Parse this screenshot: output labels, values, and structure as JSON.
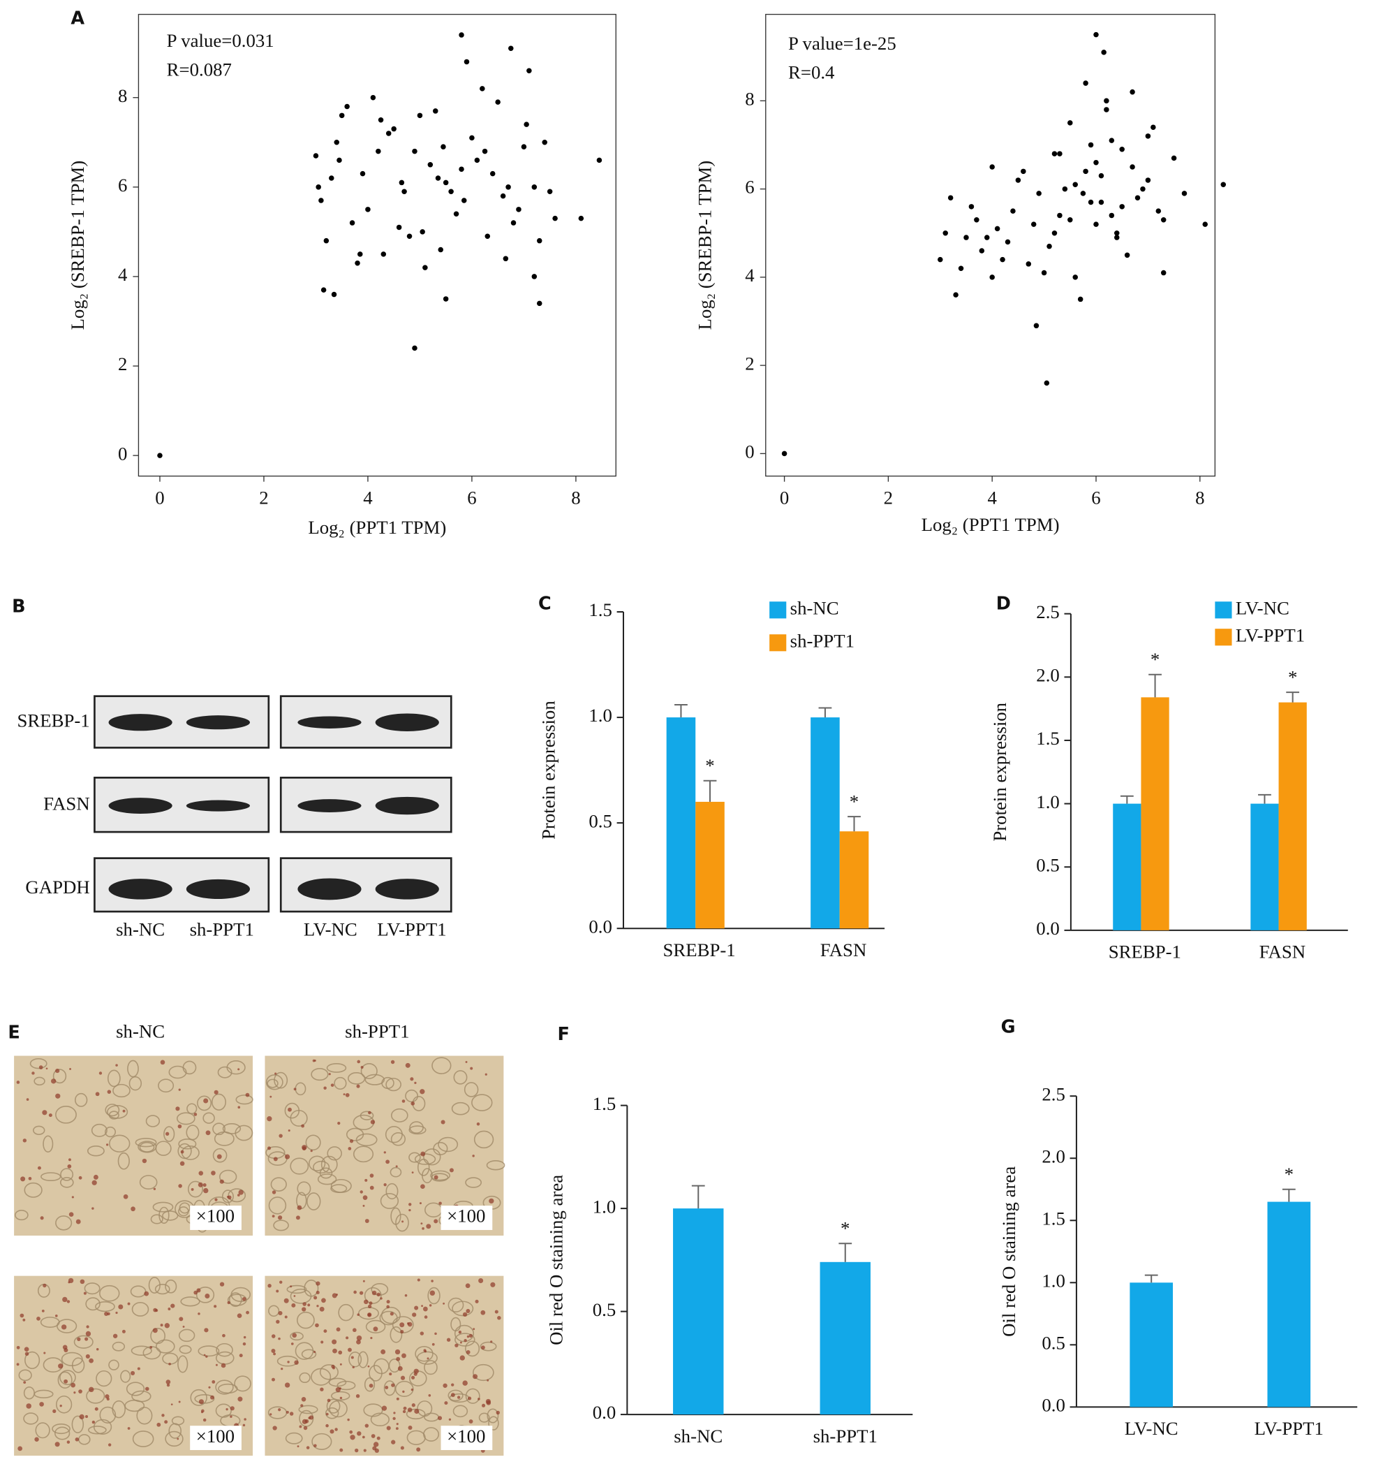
{
  "chart_data": [
    {
      "type": "scatter",
      "panel": "A",
      "annotations": [
        "P value=0.031",
        "R=0.087"
      ],
      "x_label": "Log₂ (PPT1 TPM)",
      "y_label": "Log₂ (SREBP-1 TPM)",
      "color": "#000000",
      "x": [
        0,
        4.9,
        3.15,
        3.35,
        8.45,
        8.1,
        7.3,
        7.2,
        5.8,
        6.75,
        5.5,
        3.0,
        3.2,
        3.5,
        3.7,
        3.9,
        4.1,
        4.3,
        4.5,
        4.7,
        4.9,
        5.1,
        5.3,
        5.5,
        5.7,
        5.9,
        6.1,
        6.3,
        6.5,
        6.7,
        6.9,
        7.1,
        7.4,
        7.6,
        3.1,
        3.4,
        3.8,
        4.2,
        4.6,
        5.0,
        5.4,
        5.8,
        6.2,
        6.6,
        7.0,
        7.3,
        3.3,
        3.6,
        4.0,
        4.4,
        4.8,
        5.2,
        5.6,
        6.0,
        6.4,
        6.8,
        7.2,
        3.05,
        3.45,
        3.85,
        4.25,
        4.65,
        5.05,
        5.45,
        5.85,
        6.25,
        6.65,
        7.05,
        7.5,
        5.35
      ],
      "y": [
        0,
        2.4,
        3.7,
        3.6,
        6.6,
        5.3,
        3.4,
        4.0,
        9.4,
        9.1,
        3.5,
        6.7,
        4.8,
        7.6,
        5.2,
        6.3,
        8.0,
        4.5,
        7.3,
        5.9,
        6.8,
        4.2,
        7.7,
        6.1,
        5.4,
        8.8,
        6.6,
        4.9,
        7.9,
        6.0,
        5.5,
        8.6,
        7.0,
        5.3,
        5.7,
        7.0,
        4.3,
        6.8,
        5.1,
        7.6,
        4.6,
        6.4,
        8.2,
        5.8,
        6.9,
        4.8,
        6.2,
        7.8,
        5.5,
        7.2,
        4.9,
        6.5,
        5.9,
        7.1,
        6.3,
        5.2,
        6.0,
        6.0,
        6.6,
        4.5,
        7.5,
        6.1,
        5.0,
        6.9,
        5.7,
        6.8,
        4.4,
        7.4,
        5.9,
        6.2
      ],
      "xlim": [
        -0.41,
        8.77
      ],
      "ylim": [
        -0.46,
        9.86
      ],
      "xticks": [
        0,
        2,
        4,
        6,
        8
      ],
      "yticks": [
        0,
        2,
        4,
        6,
        8
      ]
    },
    {
      "type": "scatter",
      "annotations": [
        "P value=1e-25",
        "R=0.4"
      ],
      "x_label": "Log₂ (PPT1 TPM)",
      "y_label": "Log₂ (SREBP-1 TPM)",
      "color": "#000000",
      "x": [
        0,
        5.05,
        4.85,
        6.0,
        6.15,
        8.45,
        8.1,
        3.3,
        7.3,
        3.0,
        3.1,
        3.2,
        3.4,
        3.5,
        3.7,
        3.8,
        4.0,
        4.1,
        4.3,
        4.4,
        4.6,
        4.7,
        4.9,
        5.0,
        5.2,
        5.3,
        5.5,
        5.6,
        5.8,
        5.9,
        6.1,
        6.2,
        6.4,
        6.5,
        6.7,
        6.8,
        7.0,
        7.1,
        7.3,
        7.5,
        7.7,
        3.6,
        4.2,
        4.8,
        5.4,
        5.7,
        6.0,
        6.3,
        6.6,
        6.9,
        7.2,
        5.1,
        5.5,
        5.9,
        6.2,
        6.5,
        4.5,
        3.9,
        5.8,
        6.4,
        6.1,
        5.6,
        7.0,
        4.0,
        5.2,
        6.7,
        5.3,
        6.0,
        5.75,
        6.3
      ],
      "y": [
        0,
        1.6,
        2.9,
        9.5,
        9.1,
        6.1,
        5.2,
        3.6,
        4.1,
        4.4,
        5.0,
        5.8,
        4.2,
        4.9,
        5.3,
        4.6,
        6.5,
        5.1,
        4.8,
        5.5,
        6.4,
        4.3,
        5.9,
        4.1,
        6.8,
        5.4,
        7.5,
        4.0,
        8.4,
        5.7,
        6.3,
        7.8,
        5.0,
        6.9,
        8.2,
        5.8,
        6.2,
        7.4,
        5.3,
        6.7,
        5.9,
        5.6,
        4.4,
        5.2,
        6.0,
        3.5,
        6.6,
        7.1,
        4.5,
        6.0,
        5.5,
        4.7,
        5.3,
        7.0,
        8.0,
        5.6,
        6.2,
        4.9,
        6.4,
        4.9,
        5.7,
        6.1,
        7.2,
        4.0,
        5.0,
        6.5,
        6.8,
        5.2,
        5.9,
        5.4
      ],
      "xlim": [
        -0.36,
        8.29
      ],
      "ylim": [
        -0.51,
        9.96
      ],
      "xticks": [
        0,
        2,
        4,
        6,
        8
      ],
      "yticks": [
        0,
        2,
        4,
        6,
        8
      ]
    },
    {
      "type": "bar",
      "panel": "C",
      "y_label": "Protein expression",
      "categories": [
        "SREBP-1",
        "FASN"
      ],
      "series": [
        {
          "name": "sh-NC",
          "color": "#12a8e8",
          "values": [
            1.0,
            1.0
          ],
          "errors": [
            0.06,
            0.045
          ]
        },
        {
          "name": "sh-PPT1",
          "color": "#f7990f",
          "values": [
            0.6,
            0.46
          ],
          "errors": [
            0.1,
            0.07
          ],
          "value_annotations": [
            "*",
            "*"
          ]
        }
      ],
      "ylim": [
        0,
        1.5
      ],
      "yticks": [
        {
          "value": 0,
          "label": "0.0"
        },
        0.5,
        {
          "value": 1,
          "label": "1.0"
        },
        1.5
      ],
      "legend": "top-right"
    },
    {
      "type": "bar",
      "panel": "D",
      "y_label": "Protein expression",
      "categories": [
        "SREBP-1",
        "FASN"
      ],
      "series": [
        {
          "name": "LV-NC",
          "color": "#12a8e8",
          "values": [
            1.0,
            1.0
          ],
          "errors": [
            0.06,
            0.07
          ]
        },
        {
          "name": "LV-PPT1",
          "color": "#f7990f",
          "values": [
            1.84,
            1.8
          ],
          "errors": [
            0.18,
            0.08
          ],
          "value_annotations": [
            "*",
            "*"
          ]
        }
      ],
      "ylim": [
        0,
        2.5
      ],
      "yticks": [
        {
          "value": 0,
          "label": "0.0"
        },
        0.5,
        {
          "value": 1,
          "label": "1.0"
        },
        1.5,
        {
          "value": 2,
          "label": "2.0"
        },
        2.5
      ],
      "legend": "top-right"
    },
    {
      "type": "bar",
      "panel": "F",
      "y_label": "Oil red O staining area",
      "categories": [
        "sh-NC",
        "sh-PPT1"
      ],
      "series": [
        {
          "color": "#12a8e8",
          "values": [
            1.0,
            0.74
          ],
          "errors": [
            0.11,
            0.09
          ],
          "value_annotations": [
            null,
            "*"
          ]
        }
      ],
      "ylim": [
        0,
        1.5
      ],
      "yticks": [
        {
          "value": 0,
          "label": "0.0"
        },
        0.5,
        {
          "value": 1,
          "label": "1.0"
        },
        1.5
      ]
    },
    {
      "type": "bar",
      "panel": "G",
      "y_label": "Oil red O staining area",
      "categories": [
        "LV-NC",
        "LV-PPT1"
      ],
      "series": [
        {
          "color": "#12a8e8",
          "values": [
            1.0,
            1.65
          ],
          "errors": [
            0.06,
            0.1
          ],
          "value_annotations": [
            null,
            "*"
          ]
        }
      ],
      "ylim": [
        0,
        2.5
      ],
      "yticks": [
        {
          "value": 0,
          "label": "0.0"
        },
        0.5,
        {
          "value": 1,
          "label": "1.0"
        },
        1.5,
        {
          "value": 2,
          "label": "2.0"
        },
        2.5
      ]
    }
  ],
  "blot": {
    "panel": "B",
    "proteins": [
      "SREBP-1",
      "FASN",
      "GAPDH"
    ],
    "lanes": [
      "sh-NC",
      "sh-PPT1",
      "LV-NC",
      "LV-PPT1"
    ]
  },
  "micrographs": {
    "panel": "E",
    "columns": [
      "sh-NC",
      "sh-PPT1"
    ],
    "magnifications": [
      "×100",
      "×100",
      "×100",
      "×100"
    ]
  }
}
